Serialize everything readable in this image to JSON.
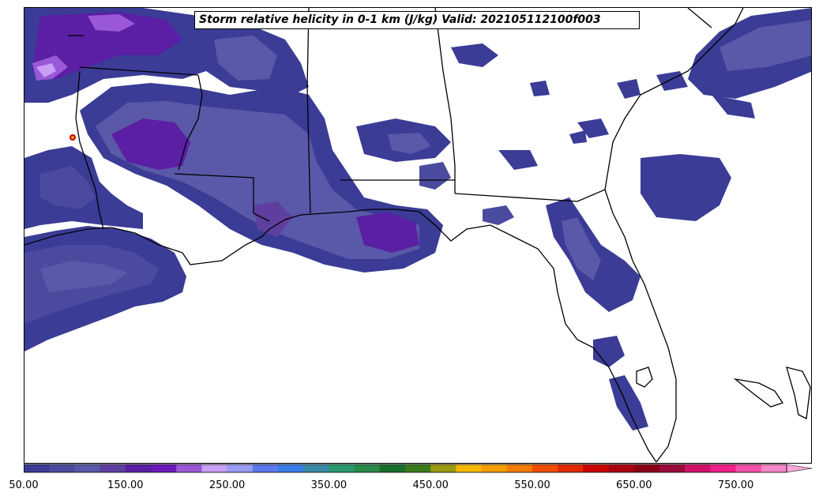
{
  "title": "Storm relative helicity in 0-1 km (J/kg) Valid: 202105112100f003",
  "colorbar": {
    "min": 50,
    "max": 800,
    "step": 25,
    "extend": "max",
    "tick_labels": [
      "50.00",
      "150.00",
      "250.00",
      "350.00",
      "450.00",
      "550.00",
      "650.00",
      "750.00"
    ],
    "colors": [
      "#3a3c96",
      "#4a4a9e",
      "#5a58a8",
      "#5e3fa0",
      "#5a1fa4",
      "#6a18b8",
      "#9a58d8",
      "#c8a0f4",
      "#9a9cf4",
      "#5a78f0",
      "#3a7ce6",
      "#3a8aa8",
      "#2a9a70",
      "#2a8a4a",
      "#18702a",
      "#3a7a1a",
      "#9a9a10",
      "#f4b800",
      "#f49c00",
      "#f47c00",
      "#f04e00",
      "#e02a00",
      "#c80000",
      "#a80010",
      "#8a0018",
      "#9a0a3a",
      "#d0106a",
      "#f0208a",
      "#f450a8",
      "#f488c8"
    ],
    "extend_color": "#f8a8d8"
  },
  "legend_colors": {
    "srh_50_75": "#3a3c96",
    "srh_75_100": "#4a4a9e",
    "srh_100_125": "#5a58a8",
    "srh_125_150": "#5e3fa0",
    "srh_150_175": "#5a1fa4",
    "srh_200_225": "#9a58d8",
    "srh_225_250": "#c8a0f4"
  }
}
